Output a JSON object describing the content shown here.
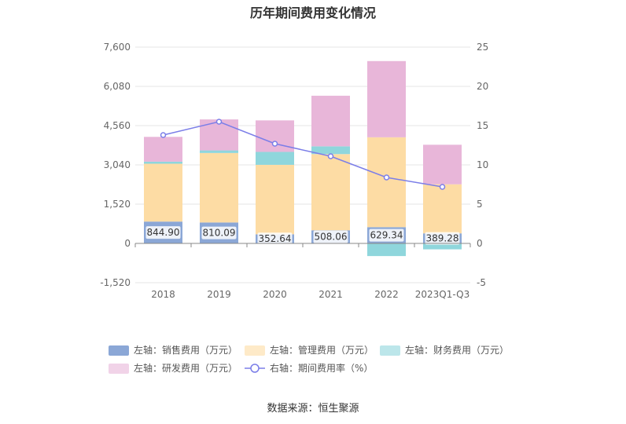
{
  "title": "历年期间费用变化情况",
  "source": "数据来源：恒生聚源",
  "colors": {
    "sales": "#8ba7d6",
    "admin": "#fddca4",
    "finance": "#8fd6dc",
    "rd": "#e8b6d9",
    "rate": "#7b7ee8",
    "grid": "#e6e6e6",
    "axis": "#999999"
  },
  "legend": [
    {
      "label": "左轴：销售费用（万元）",
      "color_key": "sales",
      "kind": "rect"
    },
    {
      "label": "左轴：管理费用（万元）",
      "color_key": "admin",
      "kind": "rect"
    },
    {
      "label": "左轴：财务费用（万元）",
      "color_key": "finance",
      "kind": "rect"
    },
    {
      "label": "左轴：研发费用（万元）",
      "color_key": "rd",
      "kind": "rect"
    },
    {
      "label": "右轴：期间费用率（%）",
      "color_key": "rate",
      "kind": "line"
    }
  ],
  "chart_data": {
    "type": "bar",
    "stacked": true,
    "categories": [
      "2018",
      "2019",
      "2020",
      "2021",
      "2022",
      "2023Q1-Q3"
    ],
    "series": [
      {
        "name": "左轴：销售费用（万元）",
        "key": "sales",
        "values": [
          844.9,
          810.09,
          352.64,
          508.06,
          629.34,
          389.28
        ],
        "labels": [
          "844.90",
          "810.09",
          "352.64",
          "508.06",
          "629.34",
          "389.28"
        ]
      },
      {
        "name": "左轴：管理费用（万元）",
        "key": "admin",
        "values": [
          2240,
          2690,
          2690,
          2950,
          3480,
          1900
        ]
      },
      {
        "name": "左轴：财务费用（万元）",
        "key": "finance",
        "values": [
          80,
          100,
          500,
          300,
          -490,
          -230
        ]
      },
      {
        "name": "左轴：研发费用（万元）",
        "key": "rd",
        "values": [
          960,
          1200,
          1220,
          1960,
          2950,
          1530
        ]
      }
    ],
    "line_series": {
      "name": "右轴：期间费用率（%）",
      "key": "rate",
      "axis": "right",
      "values": [
        13.8,
        15.5,
        12.7,
        11.1,
        8.4,
        7.2
      ]
    },
    "left_axis": {
      "ticks": [
        "7,600",
        "6,080",
        "4,560",
        "3,040",
        "1,520",
        "0",
        "-1,520"
      ],
      "ylim": [
        -1520,
        7600
      ]
    },
    "right_axis": {
      "ticks": [
        "25",
        "20",
        "15",
        "10",
        "5",
        "0",
        "-5"
      ],
      "ylim": [
        -5,
        25
      ]
    },
    "grid": true,
    "legend_position": "bottom"
  }
}
